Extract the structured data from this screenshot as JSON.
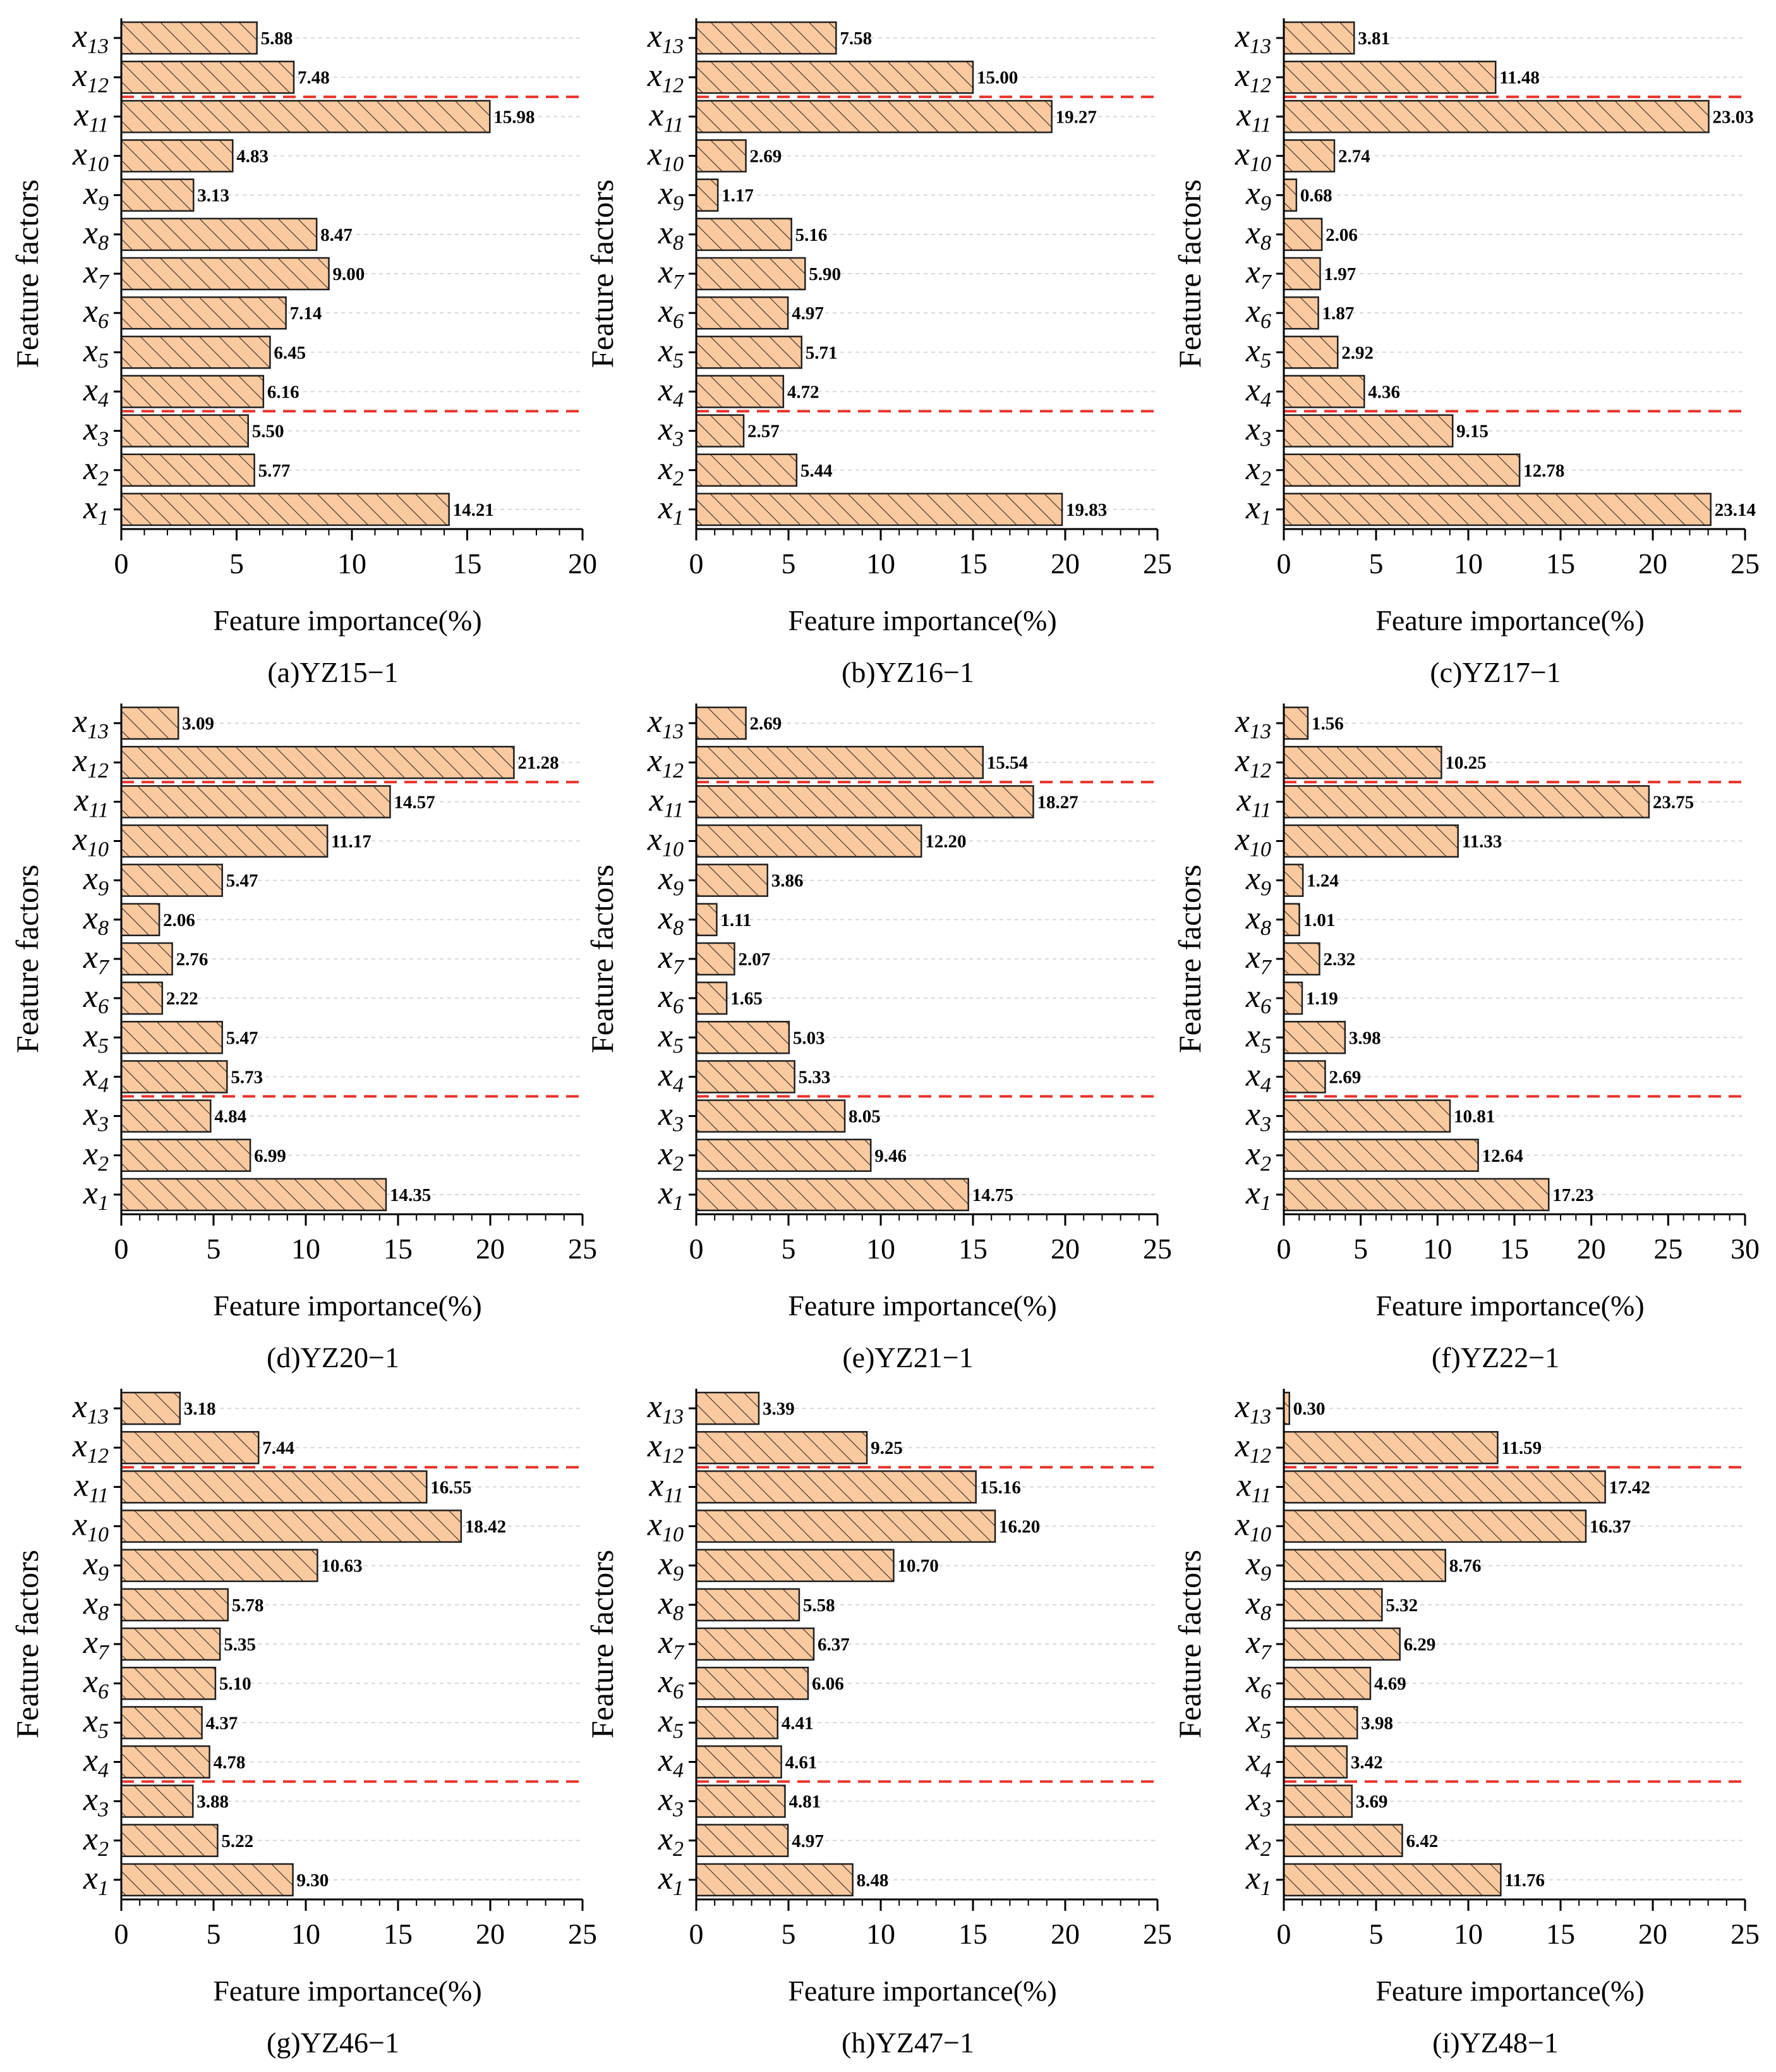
{
  "page": {
    "background": "#ffffff"
  },
  "style": {
    "bar_fill": "#f9c9a0",
    "bar_stroke": "#1f1f1f",
    "hatch_color": "#3a2a1a",
    "threshold_color": "#e8322a",
    "grid_color": "#d8d8d8",
    "axis_color": "#000000"
  },
  "chart_data": [
    {
      "type": "bar",
      "orientation": "horizontal",
      "caption": "(a)YZ15−1",
      "xlabel": "Feature importance(%)",
      "ylabel": "Feature factors",
      "xlim": [
        0,
        20
      ],
      "xticks": [
        0,
        5,
        10,
        15,
        20
      ],
      "categories": [
        "x1",
        "x2",
        "x3",
        "x4",
        "x5",
        "x6",
        "x7",
        "x8",
        "x9",
        "x10",
        "x11",
        "x12",
        "x13"
      ],
      "category_labels": [
        {
          "base": "x",
          "sub": "1"
        },
        {
          "base": "x",
          "sub": "2"
        },
        {
          "base": "x",
          "sub": "3"
        },
        {
          "base": "x",
          "sub": "4"
        },
        {
          "base": "x",
          "sub": "5"
        },
        {
          "base": "x",
          "sub": "6"
        },
        {
          "base": "x",
          "sub": "7"
        },
        {
          "base": "x",
          "sub": "8"
        },
        {
          "base": "x",
          "sub": "9"
        },
        {
          "base": "x",
          "sub": "10"
        },
        {
          "base": "x",
          "sub": "11"
        },
        {
          "base": "x",
          "sub": "12"
        },
        {
          "base": "x",
          "sub": "13"
        }
      ],
      "values": [
        14.21,
        5.77,
        5.5,
        6.16,
        6.45,
        7.14,
        9.0,
        8.47,
        3.13,
        4.83,
        15.98,
        7.48,
        5.88
      ],
      "value_labels": [
        "14.21",
        "5.77",
        "5.50",
        "6.16",
        "6.45",
        "7.14",
        "9.00",
        "8.47",
        "3.13",
        "4.83",
        "15.98",
        "7.48",
        "5.88"
      ],
      "group_separators_after": [
        "x3",
        "x11"
      ]
    },
    {
      "type": "bar",
      "orientation": "horizontal",
      "caption": "(b)YZ16−1",
      "xlabel": "Feature importance(%)",
      "ylabel": "Feature factors",
      "xlim": [
        0,
        25
      ],
      "xticks": [
        0,
        5,
        10,
        15,
        20,
        25
      ],
      "categories": [
        "x1",
        "x2",
        "x3",
        "x4",
        "x5",
        "x6",
        "x7",
        "x8",
        "x9",
        "x10",
        "x11",
        "x12",
        "x13"
      ],
      "category_labels": [
        {
          "base": "x",
          "sub": "1"
        },
        {
          "base": "x",
          "sub": "2"
        },
        {
          "base": "x",
          "sub": "3"
        },
        {
          "base": "x",
          "sub": "4"
        },
        {
          "base": "x",
          "sub": "5"
        },
        {
          "base": "x",
          "sub": "6"
        },
        {
          "base": "x",
          "sub": "7"
        },
        {
          "base": "x",
          "sub": "8"
        },
        {
          "base": "x",
          "sub": "9"
        },
        {
          "base": "x",
          "sub": "10"
        },
        {
          "base": "x",
          "sub": "11"
        },
        {
          "base": "x",
          "sub": "12"
        },
        {
          "base": "x",
          "sub": "13"
        }
      ],
      "values": [
        19.83,
        5.44,
        2.57,
        4.72,
        5.71,
        4.97,
        5.9,
        5.16,
        1.17,
        2.69,
        19.27,
        15.0,
        7.58
      ],
      "value_labels": [
        "19.83",
        "5.44",
        "2.57",
        "4.72",
        "5.71",
        "4.97",
        "5.90",
        "5.16",
        "1.17",
        "2.69",
        "19.27",
        "15.00",
        "7.58"
      ],
      "group_separators_after": [
        "x3",
        "x11"
      ]
    },
    {
      "type": "bar",
      "orientation": "horizontal",
      "caption": "(c)YZ17−1",
      "xlabel": "Feature importance(%)",
      "ylabel": "Feature factors",
      "xlim": [
        0,
        25
      ],
      "xticks": [
        0,
        5,
        10,
        15,
        20,
        25
      ],
      "categories": [
        "x1",
        "x2",
        "x3",
        "x4",
        "x5",
        "x6",
        "x7",
        "x8",
        "x9",
        "x10",
        "x11",
        "x12",
        "x13"
      ],
      "category_labels": [
        {
          "base": "x",
          "sub": "1"
        },
        {
          "base": "x",
          "sub": "2"
        },
        {
          "base": "x",
          "sub": "3"
        },
        {
          "base": "x",
          "sub": "4"
        },
        {
          "base": "x",
          "sub": "5"
        },
        {
          "base": "x",
          "sub": "6"
        },
        {
          "base": "x",
          "sub": "7"
        },
        {
          "base": "x",
          "sub": "8"
        },
        {
          "base": "x",
          "sub": "9"
        },
        {
          "base": "x",
          "sub": "10"
        },
        {
          "base": "x",
          "sub": "11"
        },
        {
          "base": "x",
          "sub": "12"
        },
        {
          "base": "x",
          "sub": "13"
        }
      ],
      "values": [
        23.14,
        12.78,
        9.15,
        4.36,
        2.92,
        1.87,
        1.97,
        2.06,
        0.68,
        2.74,
        23.03,
        11.48,
        3.81
      ],
      "value_labels": [
        "23.14",
        "12.78",
        "9.15",
        "4.36",
        "2.92",
        "1.87",
        "1.97",
        "2.06",
        "0.68",
        "2.74",
        "23.03",
        "11.48",
        "3.81"
      ],
      "group_separators_after": [
        "x3",
        "x11"
      ]
    },
    {
      "type": "bar",
      "orientation": "horizontal",
      "caption": "(d)YZ20−1",
      "xlabel": "Feature importance(%)",
      "ylabel": "Feature factors",
      "xlim": [
        0,
        25
      ],
      "xticks": [
        0,
        5,
        10,
        15,
        20,
        25
      ],
      "categories": [
        "x1",
        "x2",
        "x3",
        "x4",
        "x5",
        "x6",
        "x7",
        "x8",
        "x9",
        "x10",
        "x11",
        "x12",
        "x13"
      ],
      "category_labels": [
        {
          "base": "x",
          "sub": "1"
        },
        {
          "base": "x",
          "sub": "2"
        },
        {
          "base": "x",
          "sub": "3"
        },
        {
          "base": "x",
          "sub": "4"
        },
        {
          "base": "x",
          "sub": "5"
        },
        {
          "base": "x",
          "sub": "6"
        },
        {
          "base": "x",
          "sub": "7"
        },
        {
          "base": "x",
          "sub": "8"
        },
        {
          "base": "x",
          "sub": "9"
        },
        {
          "base": "x",
          "sub": "10"
        },
        {
          "base": "x",
          "sub": "11"
        },
        {
          "base": "x",
          "sub": "12"
        },
        {
          "base": "x",
          "sub": "13"
        }
      ],
      "values": [
        14.35,
        6.99,
        4.84,
        5.73,
        5.47,
        2.22,
        2.76,
        2.06,
        5.47,
        11.17,
        14.57,
        21.28,
        3.09
      ],
      "value_labels": [
        "14.35",
        "6.99",
        "4.84",
        "5.73",
        "5.47",
        "2.22",
        "2.76",
        "2.06",
        "5.47",
        "11.17",
        "14.57",
        "21.28",
        "3.09"
      ],
      "group_separators_after": [
        "x3",
        "x11"
      ]
    },
    {
      "type": "bar",
      "orientation": "horizontal",
      "caption": "(e)YZ21−1",
      "xlabel": "Feature importance(%)",
      "ylabel": "Feature factors",
      "xlim": [
        0,
        25
      ],
      "xticks": [
        0,
        5,
        10,
        15,
        20,
        25
      ],
      "categories": [
        "x1",
        "x2",
        "x3",
        "x4",
        "x5",
        "x6",
        "x7",
        "x8",
        "x9",
        "x10",
        "x11",
        "x12",
        "x13"
      ],
      "category_labels": [
        {
          "base": "x",
          "sub": "1"
        },
        {
          "base": "x",
          "sub": "2"
        },
        {
          "base": "x",
          "sub": "3"
        },
        {
          "base": "x",
          "sub": "4"
        },
        {
          "base": "x",
          "sub": "5"
        },
        {
          "base": "x",
          "sub": "6"
        },
        {
          "base": "x",
          "sub": "7"
        },
        {
          "base": "x",
          "sub": "8"
        },
        {
          "base": "x",
          "sub": "9"
        },
        {
          "base": "x",
          "sub": "10"
        },
        {
          "base": "x",
          "sub": "11"
        },
        {
          "base": "x",
          "sub": "12"
        },
        {
          "base": "x",
          "sub": "13"
        }
      ],
      "values": [
        14.75,
        9.46,
        8.05,
        5.33,
        5.03,
        1.65,
        2.07,
        1.11,
        3.86,
        12.2,
        18.27,
        15.54,
        2.69
      ],
      "value_labels": [
        "14.75",
        "9.46",
        "8.05",
        "5.33",
        "5.03",
        "1.65",
        "2.07",
        "1.11",
        "3.86",
        "12.20",
        "18.27",
        "15.54",
        "2.69"
      ],
      "group_separators_after": [
        "x3",
        "x11"
      ]
    },
    {
      "type": "bar",
      "orientation": "horizontal",
      "caption": "(f)YZ22−1",
      "xlabel": "Feature importance(%)",
      "ylabel": "Feature factors",
      "xlim": [
        0,
        30
      ],
      "xticks": [
        0,
        5,
        10,
        15,
        20,
        25,
        30
      ],
      "categories": [
        "x1",
        "x2",
        "x3",
        "x4",
        "x5",
        "x6",
        "x7",
        "x8",
        "x9",
        "x10",
        "x11",
        "x12",
        "x13"
      ],
      "category_labels": [
        {
          "base": "x",
          "sub": "1"
        },
        {
          "base": "x",
          "sub": "2"
        },
        {
          "base": "x",
          "sub": "3"
        },
        {
          "base": "x",
          "sub": "4"
        },
        {
          "base": "x",
          "sub": "5"
        },
        {
          "base": "x",
          "sub": "6"
        },
        {
          "base": "x",
          "sub": "7"
        },
        {
          "base": "x",
          "sub": "8"
        },
        {
          "base": "x",
          "sub": "9"
        },
        {
          "base": "x",
          "sub": "10"
        },
        {
          "base": "x",
          "sub": "11"
        },
        {
          "base": "x",
          "sub": "12"
        },
        {
          "base": "x",
          "sub": "13"
        }
      ],
      "values": [
        17.23,
        12.64,
        10.81,
        2.69,
        3.98,
        1.19,
        2.32,
        1.01,
        1.24,
        11.33,
        23.75,
        10.25,
        1.56
      ],
      "value_labels": [
        "17.23",
        "12.64",
        "10.81",
        "2.69",
        "3.98",
        "1.19",
        "2.32",
        "1.01",
        "1.24",
        "11.33",
        "23.75",
        "10.25",
        "1.56"
      ],
      "group_separators_after": [
        "x3",
        "x11"
      ]
    },
    {
      "type": "bar",
      "orientation": "horizontal",
      "caption": "(g)YZ46−1",
      "xlabel": "Feature importance(%)",
      "ylabel": "Feature factors",
      "xlim": [
        0,
        25
      ],
      "xticks": [
        0,
        5,
        10,
        15,
        20,
        25
      ],
      "categories": [
        "x1",
        "x2",
        "x3",
        "x4",
        "x5",
        "x6",
        "x7",
        "x8",
        "x9",
        "x10",
        "x11",
        "x12",
        "x13"
      ],
      "category_labels": [
        {
          "base": "x",
          "sub": "1"
        },
        {
          "base": "x",
          "sub": "2"
        },
        {
          "base": "x",
          "sub": "3"
        },
        {
          "base": "x",
          "sub": "4"
        },
        {
          "base": "x",
          "sub": "5"
        },
        {
          "base": "x",
          "sub": "6"
        },
        {
          "base": "x",
          "sub": "7"
        },
        {
          "base": "x",
          "sub": "8"
        },
        {
          "base": "x",
          "sub": "9"
        },
        {
          "base": "x",
          "sub": "10"
        },
        {
          "base": "x",
          "sub": "11"
        },
        {
          "base": "x",
          "sub": "12"
        },
        {
          "base": "x",
          "sub": "13"
        }
      ],
      "values": [
        9.3,
        5.22,
        3.88,
        4.78,
        4.37,
        5.1,
        5.35,
        5.78,
        10.63,
        18.42,
        16.55,
        7.44,
        3.18
      ],
      "value_labels": [
        "9.30",
        "5.22",
        "3.88",
        "4.78",
        "4.37",
        "5.10",
        "5.35",
        "5.78",
        "10.63",
        "18.42",
        "16.55",
        "7.44",
        "3.18"
      ],
      "group_separators_after": [
        "x3",
        "x11"
      ]
    },
    {
      "type": "bar",
      "orientation": "horizontal",
      "caption": "(h)YZ47−1",
      "xlabel": "Feature importance(%)",
      "ylabel": "Feature factors",
      "xlim": [
        0,
        25
      ],
      "xticks": [
        0,
        5,
        10,
        15,
        20,
        25
      ],
      "categories": [
        "x1",
        "x2",
        "x3",
        "x4",
        "x5",
        "x6",
        "x7",
        "x8",
        "x9",
        "x10",
        "x11",
        "x12",
        "x13"
      ],
      "category_labels": [
        {
          "base": "x",
          "sub": "1"
        },
        {
          "base": "x",
          "sub": "2"
        },
        {
          "base": "x",
          "sub": "3"
        },
        {
          "base": "x",
          "sub": "4"
        },
        {
          "base": "x",
          "sub": "5"
        },
        {
          "base": "x",
          "sub": "6"
        },
        {
          "base": "x",
          "sub": "7"
        },
        {
          "base": "x",
          "sub": "8"
        },
        {
          "base": "x",
          "sub": "9"
        },
        {
          "base": "x",
          "sub": "10"
        },
        {
          "base": "x",
          "sub": "11"
        },
        {
          "base": "x",
          "sub": "12"
        },
        {
          "base": "x",
          "sub": "13"
        }
      ],
      "values": [
        8.48,
        4.97,
        4.81,
        4.61,
        4.41,
        6.06,
        6.37,
        5.58,
        10.7,
        16.2,
        15.16,
        9.25,
        3.39
      ],
      "value_labels": [
        "8.48",
        "4.97",
        "4.81",
        "4.61",
        "4.41",
        "6.06",
        "6.37",
        "5.58",
        "10.70",
        "16.20",
        "15.16",
        "9.25",
        "3.39"
      ],
      "group_separators_after": [
        "x3",
        "x11"
      ]
    },
    {
      "type": "bar",
      "orientation": "horizontal",
      "caption": "(i)YZ48−1",
      "xlabel": "Feature importance(%)",
      "ylabel": "Feature factors",
      "xlim": [
        0,
        25
      ],
      "xticks": [
        0,
        5,
        10,
        15,
        20,
        25
      ],
      "categories": [
        "x1",
        "x2",
        "x3",
        "x4",
        "x5",
        "x6",
        "x7",
        "x8",
        "x9",
        "x10",
        "x11",
        "x12",
        "x13"
      ],
      "category_labels": [
        {
          "base": "x",
          "sub": "1"
        },
        {
          "base": "x",
          "sub": "2"
        },
        {
          "base": "x",
          "sub": "3"
        },
        {
          "base": "x",
          "sub": "4"
        },
        {
          "base": "x",
          "sub": "5"
        },
        {
          "base": "x",
          "sub": "6"
        },
        {
          "base": "x",
          "sub": "7"
        },
        {
          "base": "x",
          "sub": "8"
        },
        {
          "base": "x",
          "sub": "9"
        },
        {
          "base": "x",
          "sub": "10"
        },
        {
          "base": "x",
          "sub": "11"
        },
        {
          "base": "x",
          "sub": "12"
        },
        {
          "base": "x",
          "sub": "13"
        }
      ],
      "values": [
        11.76,
        6.42,
        3.69,
        3.42,
        3.98,
        4.69,
        6.29,
        5.32,
        8.76,
        16.37,
        17.42,
        11.59,
        0.3
      ],
      "value_labels": [
        "11.76",
        "6.42",
        "3.69",
        "3.42",
        "3.98",
        "4.69",
        "6.29",
        "5.32",
        "8.76",
        "16.37",
        "17.42",
        "11.59",
        "0.30"
      ],
      "group_separators_after": [
        "x3",
        "x11"
      ]
    }
  ]
}
